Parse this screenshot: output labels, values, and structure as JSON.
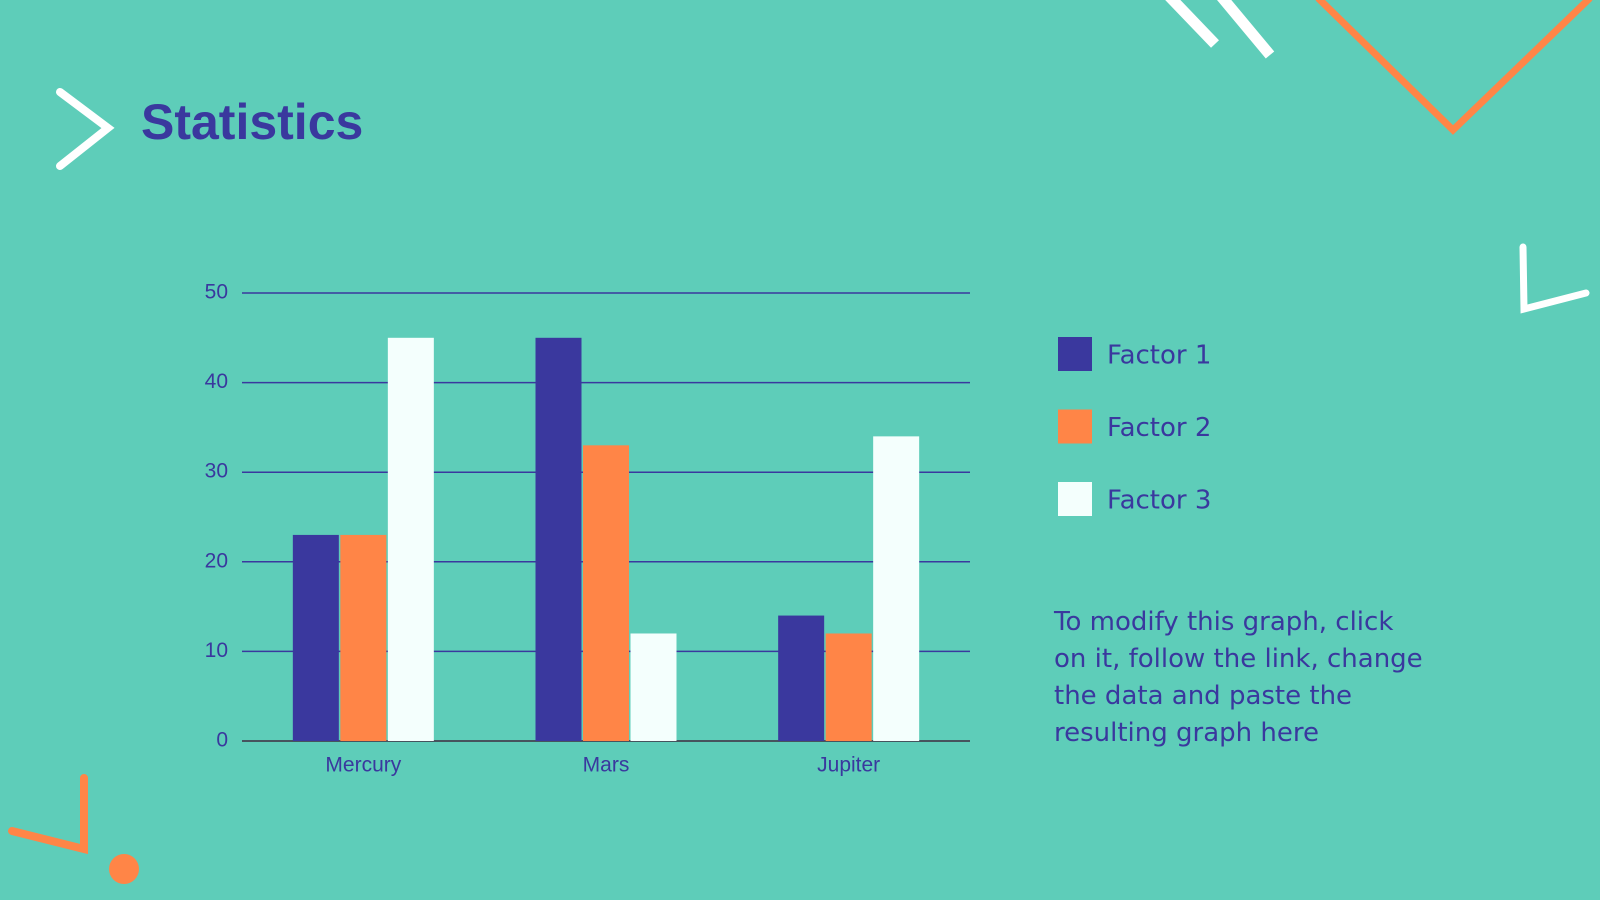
{
  "chart_data": {
    "type": "bar",
    "title": "Statistics",
    "categories": [
      "Mercury",
      "Mars",
      "Jupiter"
    ],
    "series": [
      {
        "name": "Factor 1",
        "color": "#3a389e",
        "values": [
          23,
          45,
          14
        ]
      },
      {
        "name": "Factor 2",
        "color": "#ff8547",
        "values": [
          23,
          33,
          12
        ]
      },
      {
        "name": "Factor 3",
        "color": "#f4fffd",
        "values": [
          45,
          12,
          34
        ]
      }
    ],
    "ylim": [
      0,
      50
    ],
    "yticks": [
      0,
      10,
      20,
      30,
      40,
      50
    ],
    "grid": true,
    "legend": "right",
    "annotation": "To modify this graph, click on it, follow the link, change the data and paste the resulting graph here"
  }
}
